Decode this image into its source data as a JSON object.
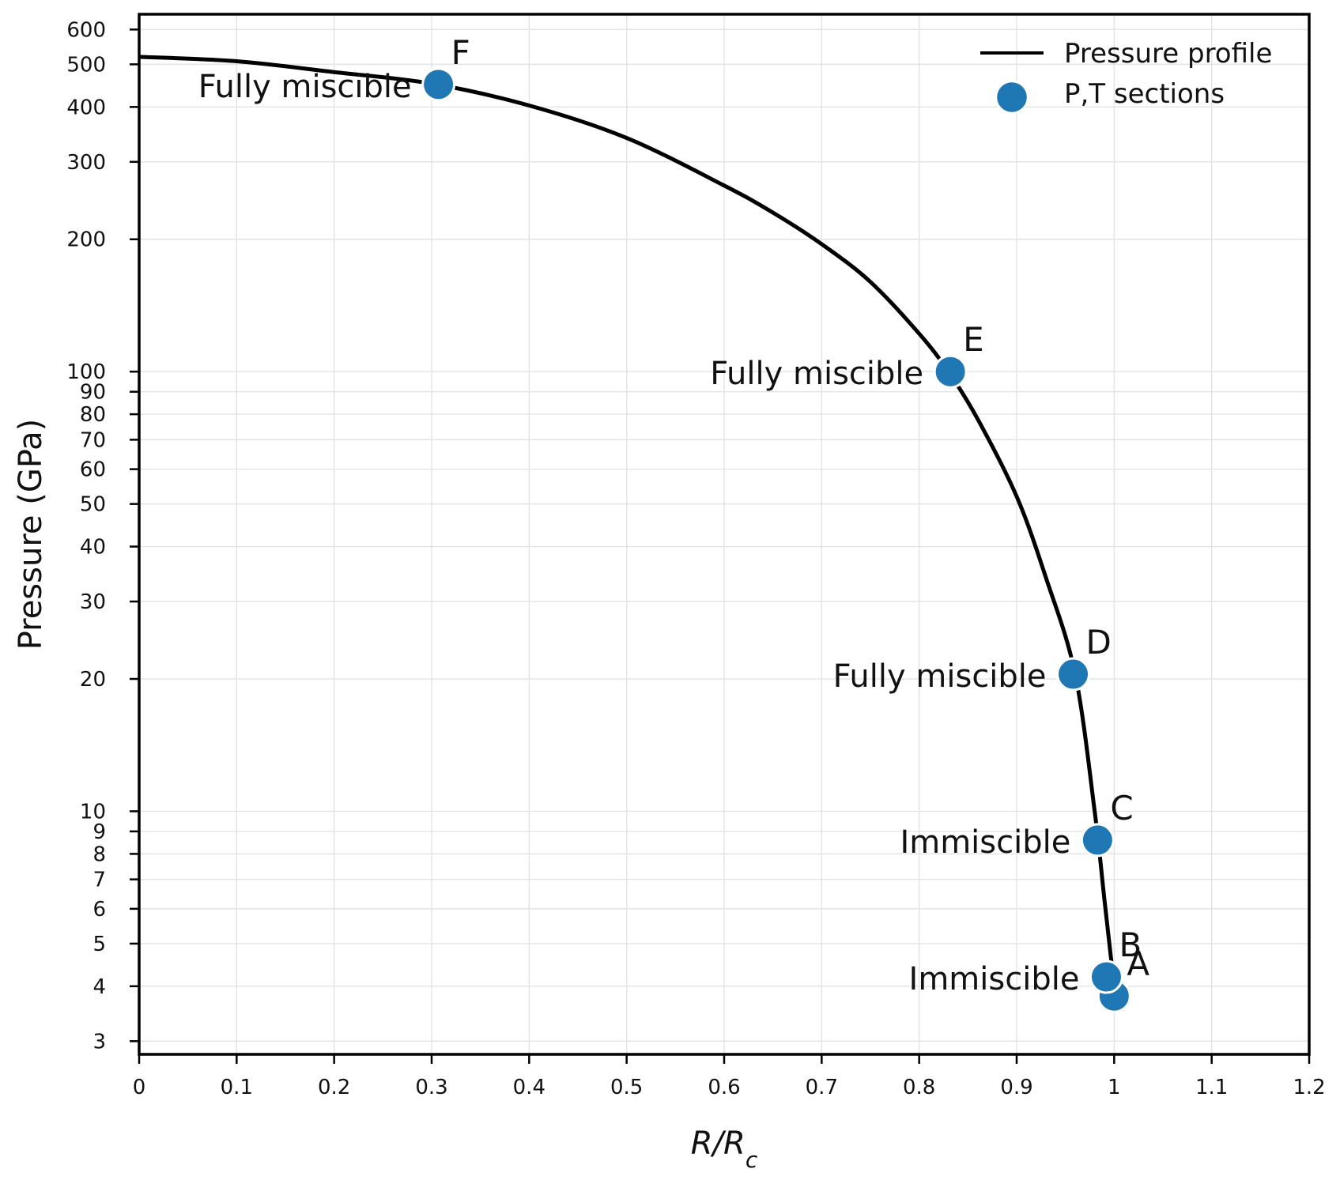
{
  "chart_data": {
    "type": "line",
    "xlabel": "R/Rc",
    "ylabel": "Pressure (GPa)",
    "xlim": [
      0,
      1.2
    ],
    "ylim": [
      2.8,
      650
    ],
    "yscale": "log",
    "grid": true,
    "legend_position": "top-right",
    "x_ticks": [
      "0",
      "0.1",
      "0.2",
      "0.3",
      "0.4",
      "0.5",
      "0.6",
      "0.7",
      "0.8",
      "0.9",
      "1",
      "1.1",
      "1.2"
    ],
    "x_tick_values": [
      0,
      0.1,
      0.2,
      0.3,
      0.4,
      0.5,
      0.6,
      0.7,
      0.8,
      0.9,
      1.0,
      1.1,
      1.2
    ],
    "y_ticks": [
      "3",
      "4",
      "5",
      "6",
      "7",
      "8",
      "9",
      "10",
      "20",
      "30",
      "40",
      "50",
      "60",
      "70",
      "80",
      "90",
      "100",
      "200",
      "300",
      "400",
      "500",
      "600"
    ],
    "y_tick_values": [
      3,
      4,
      5,
      6,
      7,
      8,
      9,
      10,
      20,
      30,
      40,
      50,
      60,
      70,
      80,
      90,
      100,
      200,
      300,
      400,
      500,
      600
    ],
    "series": [
      {
        "name": "Pressure profile",
        "color": "#000000",
        "x": [
          0,
          0.1,
          0.2,
          0.3,
          0.4,
          0.5,
          0.6,
          0.65,
          0.7,
          0.75,
          0.8,
          0.83,
          0.86,
          0.9,
          0.93,
          0.96,
          0.98,
          0.99,
          1.0
        ],
        "y": [
          520,
          508,
          480,
          452,
          403,
          340,
          265,
          230,
          195,
          160,
          122,
          100,
          78,
          52,
          34,
          20.5,
          10,
          6.3,
          4.0
        ]
      }
    ],
    "points": {
      "name": "P,T sections",
      "color": "#1f77b4",
      "items": [
        {
          "label": "A",
          "x": 1.0,
          "y": 3.8,
          "annotation": ""
        },
        {
          "label": "B",
          "x": 0.992,
          "y": 4.2,
          "annotation": "Immiscible"
        },
        {
          "label": "C",
          "x": 0.983,
          "y": 8.6,
          "annotation": "Immiscible"
        },
        {
          "label": "D",
          "x": 0.958,
          "y": 20.5,
          "annotation": "Fully miscible"
        },
        {
          "label": "E",
          "x": 0.832,
          "y": 100,
          "annotation": "Fully miscible"
        },
        {
          "label": "F",
          "x": 0.307,
          "y": 450,
          "annotation": "Fully miscible"
        }
      ]
    },
    "legend": [
      "Pressure profile",
      "P,T sections"
    ]
  }
}
